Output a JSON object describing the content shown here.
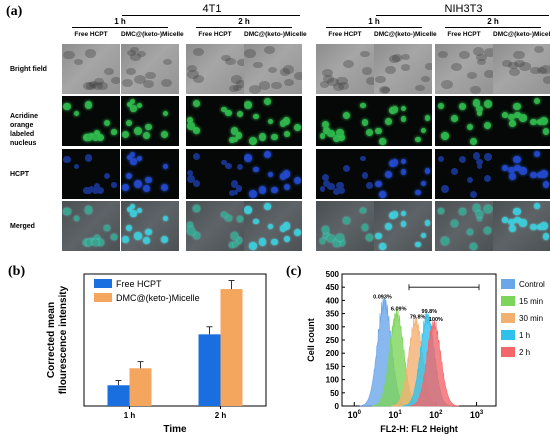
{
  "panel_a": {
    "letter": "(a)",
    "groups": [
      {
        "title": "4T1",
        "times": [
          "1 h",
          "2 h"
        ]
      },
      {
        "title": "NIH3T3",
        "times": [
          "1 h",
          "2 h"
        ]
      }
    ],
    "columns": [
      "Free HCPT",
      "DMC@(keto-)Micelle",
      "Free HCPT",
      "DMC@(keto-)Micelle"
    ],
    "rows": [
      "Bright field",
      "Acridine orange labeled nucleus",
      "HCPT",
      "Merged"
    ],
    "rows_display": [
      [
        "Bright field"
      ],
      [
        "Acridine orange",
        "labeled nucleus"
      ],
      [
        "HCPT"
      ],
      [
        "Merged"
      ]
    ]
  },
  "panel_b": {
    "letter": "(b)"
  },
  "panel_c": {
    "letter": "(c)"
  },
  "chart_data": [
    {
      "type": "bar",
      "panel": "(b)",
      "categories": [
        "1 h",
        "2 h"
      ],
      "series": [
        {
          "name": "Free HCPT",
          "values": [
            11,
            38
          ],
          "errors": [
            2.5,
            4
          ],
          "color": "#1a6fe0"
        },
        {
          "name": "DMC@(keto-)Micelle",
          "values": [
            20,
            62
          ],
          "errors": [
            3.5,
            4.5
          ],
          "color": "#f4a55e"
        }
      ],
      "xlabel": "Time",
      "ylabel": "Corrected mean fllourescence intensity",
      "ylabel_lines": [
        "Corrected mean",
        "fllourescence intensity"
      ],
      "ylim": [
        0,
        70
      ],
      "yticks": [],
      "legend": "top-left",
      "grid": false
    },
    {
      "type": "area",
      "panel": "(c)",
      "xscale": "log",
      "xlim": [
        0.5,
        3000
      ],
      "ylim": [
        0,
        500
      ],
      "xticks": [
        1,
        10,
        100,
        1000
      ],
      "xtick_labels": [
        "10^0",
        "10^1",
        "10^2",
        "10^3"
      ],
      "yticks": [
        0,
        50,
        100,
        150,
        200,
        250,
        300,
        350,
        400,
        450,
        500
      ],
      "xlabel": "FL2-H: FL2 Height",
      "ylabel": "Cell count",
      "legend": "right",
      "gate": [
        22,
        1150
      ],
      "grid": false,
      "series": [
        {
          "name": "Control",
          "color": "#6aa6e8",
          "peak_x": 5.5,
          "peak_y": 395,
          "annotation": "0.093%"
        },
        {
          "name": "15 min",
          "color": "#7cd55a",
          "peak_x": 11,
          "peak_y": 350,
          "annotation": "6.09%"
        },
        {
          "name": "30 min",
          "color": "#f2b070",
          "peak_x": 32,
          "peak_y": 320,
          "annotation": "79.8%"
        },
        {
          "name": "1 h",
          "color": "#2fc0ec",
          "peak_x": 62,
          "peak_y": 340,
          "annotation": "99.8%"
        },
        {
          "name": "2 h",
          "color": "#f2666a",
          "peak_x": 90,
          "peak_y": 310,
          "annotation": "100%"
        }
      ]
    }
  ]
}
